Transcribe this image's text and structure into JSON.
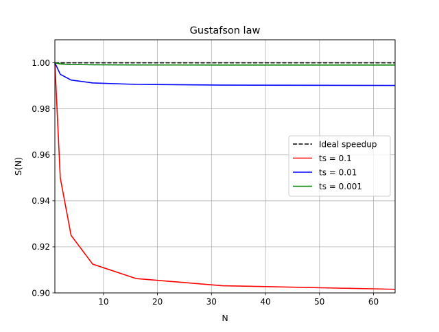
{
  "chart_data": {
    "type": "line",
    "title": "Gustafson law",
    "xlabel": "N",
    "ylabel": "S(N)",
    "xlim": [
      1,
      64
    ],
    "ylim": [
      0.9,
      1.01
    ],
    "xticks": [
      10,
      20,
      30,
      40,
      50,
      60
    ],
    "yticks": [
      0.9,
      0.92,
      0.94,
      0.96,
      0.98,
      1.0
    ],
    "ytick_labels": [
      "0.90",
      "0.92",
      "0.94",
      "0.96",
      "0.98",
      "1.00"
    ],
    "grid": true,
    "legend_position": "center-right",
    "x": [
      1,
      2,
      4,
      8,
      16,
      32,
      64
    ],
    "series": [
      {
        "name": "Ideal speedup",
        "color": "#000000",
        "dash": true,
        "values": [
          1.0,
          1.0,
          1.0,
          1.0,
          1.0,
          1.0,
          1.0
        ]
      },
      {
        "name": "ts = 0.1",
        "color": "#ff0000",
        "dash": false,
        "values": [
          1.0,
          0.95,
          0.925,
          0.9125,
          0.90625,
          0.903125,
          0.9015625
        ]
      },
      {
        "name": "ts = 0.01",
        "color": "#0000ff",
        "dash": false,
        "values": [
          1.0,
          0.995,
          0.9925,
          0.99125,
          0.990625,
          0.9903125,
          0.99015625
        ]
      },
      {
        "name": "ts = 0.001",
        "color": "#008000",
        "dash": false,
        "values": [
          1.0,
          0.9995,
          0.99925,
          0.999125,
          0.9990625,
          0.99903125,
          0.999015625
        ]
      }
    ]
  }
}
